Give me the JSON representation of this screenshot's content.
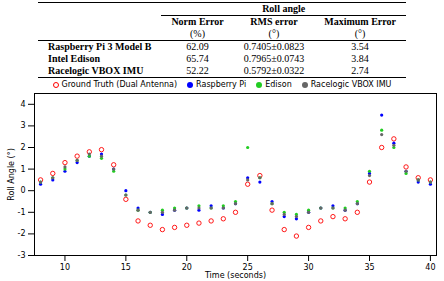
{
  "table": {
    "title": "Roll angle",
    "columns": [
      "Norm Error",
      "RMS error",
      "Maximum Error"
    ],
    "units": [
      "(%)",
      "(°)",
      "(°)"
    ],
    "rows": [
      [
        "Raspberry Pi 3 Model B",
        62.09,
        "0.7405±0.0823",
        3.54
      ],
      [
        "Intel Edison",
        65.74,
        "0.7965±0.0743",
        3.84
      ],
      [
        "Racelogic VBOX IMU",
        52.22,
        "0.5792±0.0322",
        2.74
      ]
    ]
  },
  "chart_data": {
    "type": "scatter",
    "x_label": "Time (seconds)",
    "y_label": "Roll Angle (°)",
    "x": [
      8,
      9,
      10,
      11,
      12,
      13,
      14,
      15,
      16,
      17,
      18,
      19,
      20,
      21,
      22,
      23,
      24,
      25,
      26,
      27,
      28,
      29,
      30,
      31,
      32,
      33,
      34,
      35,
      36,
      37,
      38,
      39,
      40
    ],
    "series": [
      {
        "name": "Ground Truth (Dual Antenna)",
        "color": "#ff0000",
        "marker": "open_circle",
        "values": [
          0.5,
          0.8,
          1.3,
          1.6,
          1.8,
          1.9,
          1.2,
          -0.4,
          -1.4,
          -1.6,
          -1.8,
          -1.7,
          -1.6,
          -1.5,
          -1.4,
          -1.3,
          -1.0,
          0.3,
          0.7,
          -0.9,
          -1.8,
          -2.1,
          -1.7,
          -1.4,
          -1.2,
          -1.3,
          -1.0,
          0.4,
          2.0,
          2.4,
          1.1,
          0.6,
          0.5
        ]
      },
      {
        "name": "Raspberry Pi",
        "color": "#0000ff",
        "marker": "dot",
        "values": [
          0.3,
          0.5,
          0.9,
          1.3,
          1.6,
          1.7,
          1.0,
          0.0,
          -0.8,
          -1.0,
          -1.1,
          -0.9,
          -0.8,
          -0.9,
          -0.7,
          -0.8,
          -0.6,
          0.6,
          0.4,
          -0.5,
          -1.2,
          -1.3,
          -1.0,
          -0.8,
          -0.7,
          -0.9,
          -0.6,
          0.8,
          3.5,
          2.2,
          0.9,
          0.4,
          0.3
        ]
      },
      {
        "name": "Edison",
        "color": "#22cc22",
        "marker": "dot",
        "values": [
          0.4,
          0.6,
          1.0,
          1.4,
          1.6,
          1.5,
          0.9,
          -0.2,
          -0.9,
          -1.0,
          -0.9,
          -0.8,
          -0.8,
          -0.7,
          -0.8,
          -0.7,
          -0.5,
          2.0,
          0.6,
          -0.6,
          -1.0,
          -1.1,
          -0.9,
          -0.8,
          -0.8,
          -0.8,
          -0.5,
          0.9,
          2.8,
          2.0,
          0.8,
          0.5,
          0.4
        ]
      },
      {
        "name": "Racelogic VBOX IMU",
        "color": "#666666",
        "marker": "dot",
        "values": [
          0.4,
          0.6,
          1.1,
          1.4,
          1.7,
          1.6,
          1.0,
          -0.2,
          -0.9,
          -1.0,
          -1.0,
          -0.9,
          -0.8,
          -0.8,
          -0.8,
          -0.8,
          -0.6,
          0.5,
          0.6,
          -0.6,
          -1.1,
          -1.2,
          -1.0,
          -0.8,
          -0.8,
          -0.9,
          -0.6,
          0.7,
          2.6,
          2.1,
          0.9,
          0.5,
          0.4
        ]
      }
    ],
    "xlim": [
      7.5,
      40.5
    ],
    "xticks": [
      10,
      15,
      20,
      25,
      30,
      35,
      40
    ],
    "ylim": [
      -3,
      4.5
    ],
    "yticks": [
      -3,
      -2,
      -1,
      0,
      1,
      2,
      3,
      4
    ],
    "grid": false
  }
}
